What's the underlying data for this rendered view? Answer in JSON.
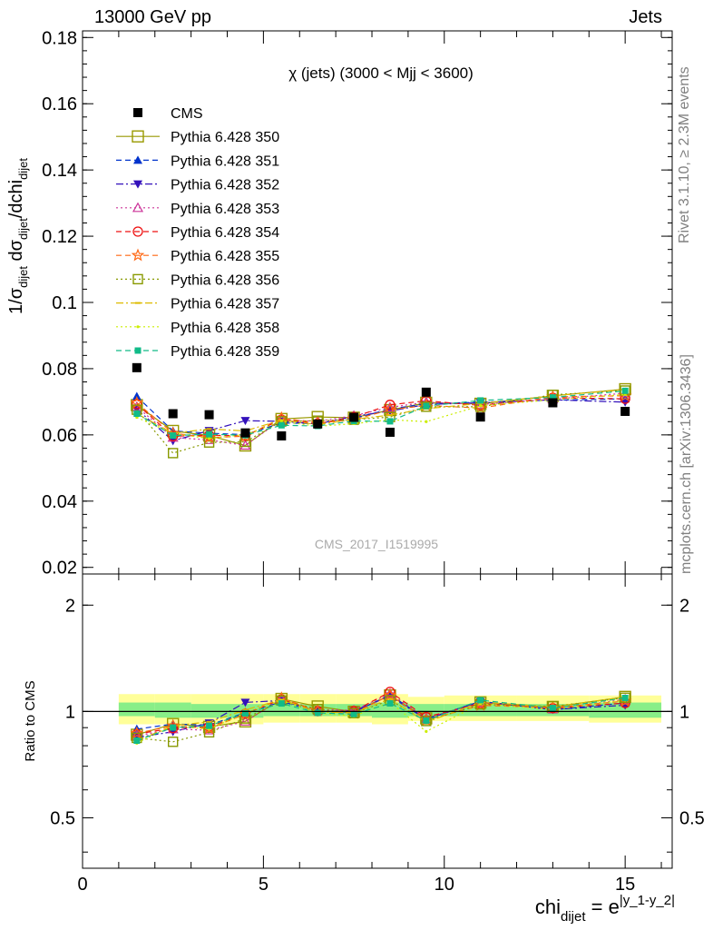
{
  "header": {
    "left": "13000 GeV pp",
    "right": "Jets"
  },
  "side_labels": {
    "rivet": "Rivet 3.1.10, ≥ 2.3M events",
    "mcplots": "mcplots.cern.ch [arXiv:1306.3436]"
  },
  "watermark": "CMS_2017_I1519995",
  "colors": {
    "cms": "#000000",
    "band_inner": "#88ee88",
    "band_outer": "#ffff99"
  },
  "chart_data": [
    {
      "type": "scatter",
      "title": "χ (jets) (3000 < Mjj < 3600)",
      "ylabel": "1/σdijet dσdijet/dchidijet",
      "xlabel": "chidijet = e|y_1-y_2|",
      "xlim": [
        0,
        16.3
      ],
      "ylim": [
        0.018,
        0.182
      ],
      "xticks": [
        "0",
        "5",
        "10",
        "15"
      ],
      "yticks": [
        "0.02",
        "0.04",
        "0.06",
        "0.08",
        "0.1",
        "0.12",
        "0.14",
        "0.16",
        "0.18"
      ],
      "legend_position": "top-left",
      "x": [
        1.5,
        2.5,
        3.5,
        4.5,
        5.5,
        6.5,
        7.5,
        8.5,
        9.5,
        11.0,
        13.0,
        15.0
      ],
      "series": [
        {
          "name": "CMS",
          "color": "#000000",
          "marker": "square-filled",
          "dash": "none",
          "values": [
            0.0803,
            0.0664,
            0.0661,
            0.0606,
            0.0597,
            0.0633,
            0.0653,
            0.0608,
            0.0729,
            0.0654,
            0.0697,
            0.0671
          ]
        },
        {
          "name": "Pythia 6.428 350",
          "color": "#999900",
          "marker": "square-open-big",
          "dash": "solid",
          "values": [
            0.069,
            0.0612,
            0.0598,
            0.0568,
            0.0648,
            0.0654,
            0.0652,
            0.0675,
            0.0697,
            0.0694,
            0.0718,
            0.0738
          ]
        },
        {
          "name": "Pythia 6.428 351",
          "color": "#0033cc",
          "marker": "triangle-up-filled",
          "dash": "dashed",
          "values": [
            0.0716,
            0.0612,
            0.0605,
            0.0601,
            0.0636,
            0.0634,
            0.065,
            0.0678,
            0.0694,
            0.0699,
            0.0705,
            0.0709
          ]
        },
        {
          "name": "Pythia 6.428 352",
          "color": "#3311bb",
          "marker": "triangle-down-filled",
          "dash": "dashdot",
          "values": [
            0.0678,
            0.0582,
            0.0613,
            0.0643,
            0.0641,
            0.0633,
            0.0656,
            0.0672,
            0.0692,
            0.0697,
            0.0706,
            0.0699
          ]
        },
        {
          "name": "Pythia 6.428 353",
          "color": "#cc3399",
          "marker": "triangle-up-open",
          "dash": "dotted",
          "values": [
            0.0685,
            0.0592,
            0.0585,
            0.0568,
            0.0646,
            0.0641,
            0.0658,
            0.0683,
            0.0699,
            0.0692,
            0.0708,
            0.0726
          ]
        },
        {
          "name": "Pythia 6.428 354",
          "color": "#ee1111",
          "marker": "circle-open",
          "dash": "dashed",
          "values": [
            0.0693,
            0.0596,
            0.0599,
            0.0597,
            0.0646,
            0.0634,
            0.0654,
            0.0691,
            0.0703,
            0.0689,
            0.0712,
            0.0709
          ]
        },
        {
          "name": "Pythia 6.428 355",
          "color": "#ff6611",
          "marker": "star-open",
          "dash": "dashed",
          "values": [
            0.0697,
            0.0605,
            0.0592,
            0.0596,
            0.0651,
            0.0636,
            0.0646,
            0.0676,
            0.0689,
            0.0681,
            0.0715,
            0.0718
          ]
        },
        {
          "name": "Pythia 6.428 356",
          "color": "#889900",
          "marker": "square-open",
          "dash": "dotted",
          "values": [
            0.0676,
            0.0545,
            0.0577,
            0.0579,
            0.0641,
            0.0643,
            0.0646,
            0.0654,
            0.0685,
            0.0685,
            0.0721,
            0.0734
          ]
        },
        {
          "name": "Pythia 6.428 357",
          "color": "#ddbb00",
          "marker": "dash",
          "dash": "dashdot",
          "values": [
            0.0664,
            0.0605,
            0.0618,
            0.0612,
            0.0645,
            0.0631,
            0.0647,
            0.066,
            0.0679,
            0.0695,
            0.0718,
            0.0737
          ]
        },
        {
          "name": "Pythia 6.428 358",
          "color": "#ccee00",
          "marker": "dot",
          "dash": "dotted",
          "values": [
            0.0653,
            0.0604,
            0.0589,
            0.0601,
            0.0641,
            0.0626,
            0.0634,
            0.0646,
            0.064,
            0.0688,
            0.0706,
            0.0722
          ]
        },
        {
          "name": "Pythia 6.428 359",
          "color": "#11bb88",
          "marker": "square-small-filled",
          "dash": "dashed",
          "values": [
            0.0664,
            0.0598,
            0.0602,
            0.0599,
            0.0629,
            0.0627,
            0.0642,
            0.0641,
            0.0687,
            0.0704,
            0.0713,
            0.0733
          ]
        }
      ]
    },
    {
      "type": "line",
      "title": "",
      "ylabel": "Ratio to CMS",
      "xlabel": "chidijet = e|y_1-y_2|",
      "log_y": true,
      "xlim": [
        0,
        16.3
      ],
      "ylim": [
        0.36,
        2.45
      ],
      "yticks": [
        "0.5",
        "1",
        "2"
      ],
      "xticks": [
        "0",
        "5",
        "10",
        "15"
      ],
      "band_edges": [
        1.0,
        2.0,
        3.0,
        4.0,
        5.0,
        6.0,
        7.0,
        8.0,
        9.0,
        10.0,
        12.0,
        14.0,
        16.0
      ],
      "band_inner": [
        [
          0.97,
          1.06
        ],
        [
          0.96,
          1.06
        ],
        [
          0.96,
          1.05
        ],
        [
          0.96,
          1.05
        ],
        [
          0.97,
          1.05
        ],
        [
          0.97,
          1.05
        ],
        [
          0.97,
          1.05
        ],
        [
          0.96,
          1.06
        ],
        [
          0.97,
          1.05
        ],
        [
          0.97,
          1.05
        ],
        [
          0.97,
          1.05
        ],
        [
          0.96,
          1.06
        ]
      ],
      "band_outer": [
        [
          0.92,
          1.12
        ],
        [
          0.92,
          1.12
        ],
        [
          0.92,
          1.12
        ],
        [
          0.92,
          1.12
        ],
        [
          0.93,
          1.12
        ],
        [
          0.93,
          1.12
        ],
        [
          0.93,
          1.12
        ],
        [
          0.92,
          1.12
        ],
        [
          0.94,
          1.1
        ],
        [
          0.94,
          1.11
        ],
        [
          0.94,
          1.11
        ],
        [
          0.93,
          1.11
        ]
      ]
    }
  ]
}
